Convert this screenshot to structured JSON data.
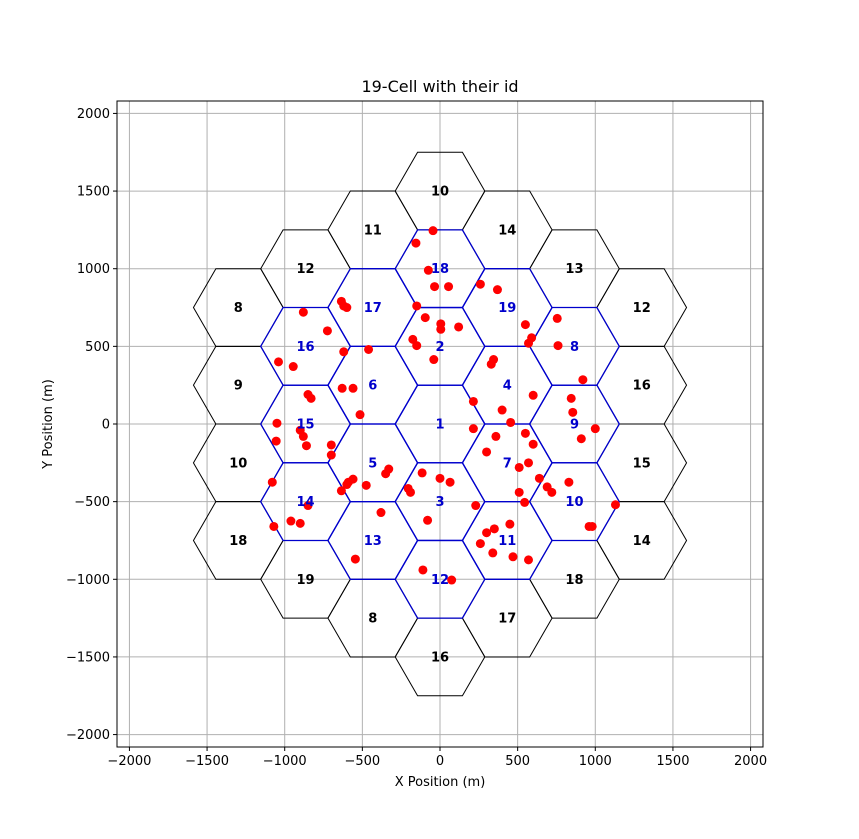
{
  "chart_data": {
    "type": "scatter",
    "title": "19-Cell with their id",
    "xlabel": "X Position (m)",
    "ylabel": "Y Position (m)",
    "xlim": [
      -2080,
      2080
    ],
    "ylim": [
      -2080,
      2080
    ],
    "xticks": [
      -2000,
      -1500,
      -1000,
      -500,
      0,
      500,
      1000,
      1500,
      2000
    ],
    "yticks": [
      -2000,
      -1500,
      -1000,
      -500,
      0,
      500,
      1000,
      1500,
      2000
    ],
    "xtick_labels": [
      "−2000",
      "−1500",
      "−1000",
      "−500",
      "0",
      "500",
      "1000",
      "1500",
      "2000"
    ],
    "ytick_labels": [
      "−2000",
      "−1500",
      "−1000",
      "−500",
      "0",
      "500",
      "1000",
      "1500",
      "2000"
    ],
    "grid": true,
    "hex_radius": 288.7,
    "colors": {
      "center_cells": "#0000cc",
      "wrap_cells": "#000000",
      "points": "#ff0000",
      "grid": "#b0b0b0"
    },
    "center_cells": [
      {
        "id": "1",
        "x": 0,
        "y": 0
      },
      {
        "id": "2",
        "x": 0,
        "y": 500
      },
      {
        "id": "3",
        "x": 0,
        "y": -500
      },
      {
        "id": "4",
        "x": 433,
        "y": 250
      },
      {
        "id": "5",
        "x": -433,
        "y": -250
      },
      {
        "id": "6",
        "x": -433,
        "y": 250
      },
      {
        "id": "7",
        "x": 433,
        "y": -250
      },
      {
        "id": "8",
        "x": 866,
        "y": 500
      },
      {
        "id": "9",
        "x": 866,
        "y": 0
      },
      {
        "id": "10",
        "x": 866,
        "y": -500
      },
      {
        "id": "11",
        "x": 433,
        "y": -750
      },
      {
        "id": "12",
        "x": 0,
        "y": -1000
      },
      {
        "id": "13",
        "x": -433,
        "y": -750
      },
      {
        "id": "14",
        "x": -866,
        "y": -500
      },
      {
        "id": "15",
        "x": -866,
        "y": 0
      },
      {
        "id": "16",
        "x": -866,
        "y": 500
      },
      {
        "id": "17",
        "x": -433,
        "y": 750
      },
      {
        "id": "18",
        "x": 0,
        "y": 1000
      },
      {
        "id": "19",
        "x": 433,
        "y": 750
      }
    ],
    "wrap_cells": [
      {
        "id": "10",
        "x": 0,
        "y": 1500
      },
      {
        "id": "11",
        "x": -433,
        "y": 1250
      },
      {
        "id": "14",
        "x": 433,
        "y": 1250
      },
      {
        "id": "12",
        "x": -866,
        "y": 1000
      },
      {
        "id": "13",
        "x": 866,
        "y": 1000
      },
      {
        "id": "8",
        "x": -1299,
        "y": 750
      },
      {
        "id": "12",
        "x": 1299,
        "y": 750
      },
      {
        "id": "9",
        "x": -1299,
        "y": 250
      },
      {
        "id": "16",
        "x": 1299,
        "y": 250
      },
      {
        "id": "10",
        "x": -1299,
        "y": -250
      },
      {
        "id": "15",
        "x": 1299,
        "y": -250
      },
      {
        "id": "18",
        "x": -1299,
        "y": -750
      },
      {
        "id": "14",
        "x": 1299,
        "y": -750
      },
      {
        "id": "19",
        "x": -866,
        "y": -1000
      },
      {
        "id": "18",
        "x": 866,
        "y": -1000
      },
      {
        "id": "8",
        "x": -433,
        "y": -1250
      },
      {
        "id": "17",
        "x": 433,
        "y": -1250
      },
      {
        "id": "16",
        "x": 0,
        "y": -1500
      }
    ],
    "points": [
      [
        -45,
        1245
      ],
      [
        -155,
        1165
      ],
      [
        -75,
        990
      ],
      [
        -35,
        885
      ],
      [
        55,
        885
      ],
      [
        260,
        900
      ],
      [
        370,
        865
      ],
      [
        -150,
        760
      ],
      [
        -635,
        790
      ],
      [
        -620,
        760
      ],
      [
        -600,
        750
      ],
      [
        -880,
        720
      ],
      [
        -725,
        600
      ],
      [
        -95,
        685
      ],
      [
        5,
        645
      ],
      [
        5,
        610
      ],
      [
        120,
        625
      ],
      [
        -175,
        545
      ],
      [
        -150,
        505
      ],
      [
        -40,
        415
      ],
      [
        -620,
        465
      ],
      [
        -460,
        480
      ],
      [
        -1040,
        400
      ],
      [
        -945,
        370
      ],
      [
        550,
        640
      ],
      [
        590,
        555
      ],
      [
        570,
        520
      ],
      [
        755,
        680
      ],
      [
        760,
        505
      ],
      [
        345,
        415
      ],
      [
        330,
        385
      ],
      [
        920,
        285
      ],
      [
        -630,
        230
      ],
      [
        -560,
        230
      ],
      [
        -850,
        190
      ],
      [
        -830,
        165
      ],
      [
        600,
        185
      ],
      [
        845,
        165
      ],
      [
        855,
        75
      ],
      [
        400,
        90
      ],
      [
        455,
        10
      ],
      [
        -515,
        60
      ],
      [
        215,
        145
      ],
      [
        1000,
        -30
      ],
      [
        -1050,
        5
      ],
      [
        -1055,
        -110
      ],
      [
        -900,
        -40
      ],
      [
        -880,
        -80
      ],
      [
        -860,
        -140
      ],
      [
        215,
        -30
      ],
      [
        360,
        -80
      ],
      [
        550,
        -60
      ],
      [
        600,
        -130
      ],
      [
        910,
        -95
      ],
      [
        300,
        -180
      ],
      [
        -700,
        -135
      ],
      [
        -700,
        -200
      ],
      [
        570,
        -250
      ],
      [
        -330,
        -290
      ],
      [
        -350,
        -320
      ],
      [
        -115,
        -315
      ],
      [
        510,
        -280
      ],
      [
        -590,
        -375
      ],
      [
        -600,
        -390
      ],
      [
        -475,
        -395
      ],
      [
        -635,
        -430
      ],
      [
        -205,
        -415
      ],
      [
        -190,
        -440
      ],
      [
        -1080,
        -375
      ],
      [
        -560,
        -355
      ],
      [
        0,
        -350
      ],
      [
        65,
        -375
      ],
      [
        640,
        -350
      ],
      [
        830,
        -375
      ],
      [
        690,
        -405
      ],
      [
        720,
        -440
      ],
      [
        510,
        -440
      ],
      [
        545,
        -505
      ],
      [
        1130,
        -520
      ],
      [
        -850,
        -525
      ],
      [
        230,
        -525
      ],
      [
        -380,
        -570
      ],
      [
        -1070,
        -660
      ],
      [
        -960,
        -625
      ],
      [
        -900,
        -640
      ],
      [
        -80,
        -620
      ],
      [
        450,
        -645
      ],
      [
        350,
        -675
      ],
      [
        300,
        -700
      ],
      [
        960,
        -660
      ],
      [
        980,
        -660
      ],
      [
        260,
        -770
      ],
      [
        340,
        -830
      ],
      [
        470,
        -855
      ],
      [
        570,
        -875
      ],
      [
        -545,
        -870
      ],
      [
        -110,
        -940
      ],
      [
        75,
        -1005
      ]
    ]
  }
}
